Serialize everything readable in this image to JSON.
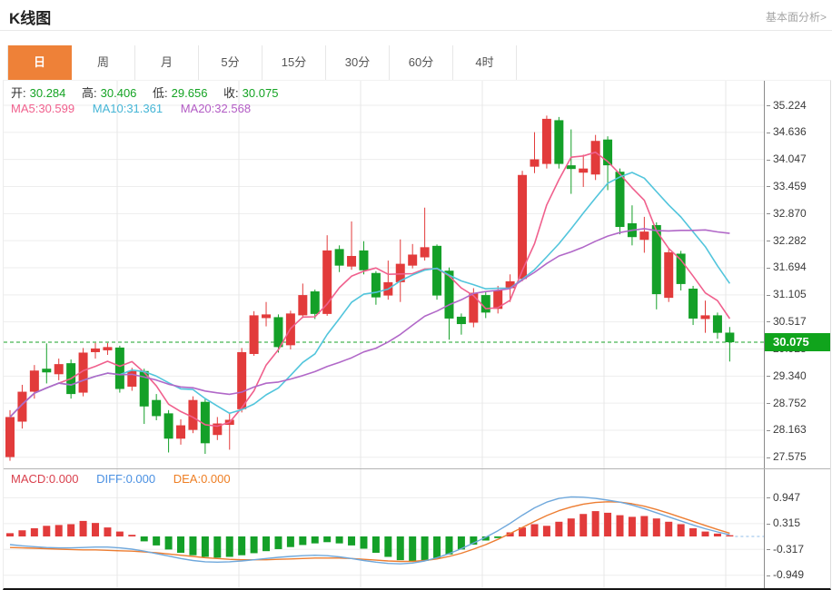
{
  "header": {
    "title": "K线图",
    "link": "基本面分析>"
  },
  "tabs": {
    "items": [
      "日",
      "周",
      "月",
      "5分",
      "15分",
      "30分",
      "60分",
      "4时"
    ],
    "active_index": 0
  },
  "legend": {
    "ohlc": [
      {
        "label": "开:",
        "value": "30.284"
      },
      {
        "label": "高:",
        "value": "30.406"
      },
      {
        "label": "低:",
        "value": "29.656"
      },
      {
        "label": "收:",
        "value": "30.075"
      }
    ],
    "ma": [
      {
        "label": "MA5:",
        "value": "30.599"
      },
      {
        "label": "MA10:",
        "value": "31.361"
      },
      {
        "label": "MA20:",
        "value": "32.568"
      }
    ]
  },
  "macd_legend": [
    {
      "label": "MACD:",
      "value": "0.000"
    },
    {
      "label": "DIFF:",
      "value": "0.000"
    },
    {
      "label": "DEA:",
      "value": "0.000"
    }
  ],
  "price_axis": {
    "labels": [
      "35.224",
      "34.636",
      "34.047",
      "33.459",
      "32.870",
      "32.282",
      "31.694",
      "31.105",
      "30.517",
      "29.928",
      "29.340",
      "28.752",
      "28.163",
      "27.575"
    ],
    "values": [
      35.224,
      34.636,
      34.047,
      33.459,
      32.87,
      32.282,
      31.694,
      31.105,
      30.517,
      29.928,
      29.34,
      28.752,
      28.163,
      27.575
    ],
    "badge": "30.075"
  },
  "macd_axis": {
    "labels": [
      "0.947",
      "0.315",
      "-0.317",
      "-0.949"
    ],
    "values": [
      0.947,
      0.315,
      -0.317,
      -0.949
    ]
  },
  "colors": {
    "up": "#e23b3b",
    "down": "#14a028",
    "ma5": "#f0608d",
    "ma10": "#52c5dc",
    "ma20": "#b168c8",
    "diff_line": "#6fa8dc",
    "dea_line": "#ed7d31",
    "current_price_line": "#1aa327",
    "badge_bg": "#10a41c",
    "tab_active": "#ee8138",
    "grid": "#ededed"
  },
  "chart_data": {
    "type": "candlestick+macd",
    "period": "日",
    "main": {
      "ohlc_display": {
        "open": 30.284,
        "high": 30.406,
        "low": 29.656,
        "close": 30.075
      },
      "ma_display": {
        "ma5": 30.599,
        "ma10": 31.361,
        "ma20": 32.568
      },
      "current_price": 30.075,
      "ylim": [
        27.334,
        35.757
      ],
      "axis_ticks": [
        35.224,
        34.636,
        34.047,
        33.459,
        32.87,
        32.282,
        31.694,
        31.105,
        30.517,
        29.928,
        29.34,
        28.752,
        28.163,
        27.575
      ],
      "candle_format": "[open, close, high, low]",
      "candles": [
        [
          27.58,
          28.45,
          28.6,
          27.5
        ],
        [
          28.35,
          29.0,
          29.15,
          28.2
        ],
        [
          29.0,
          29.46,
          29.58,
          28.85
        ],
        [
          29.5,
          29.42,
          30.05,
          29.18
        ],
        [
          29.38,
          29.6,
          29.72,
          29.25
        ],
        [
          29.62,
          28.95,
          29.7,
          28.85
        ],
        [
          28.98,
          29.85,
          29.95,
          28.9
        ],
        [
          29.86,
          29.94,
          30.06,
          29.72
        ],
        [
          29.9,
          29.97,
          30.06,
          29.8
        ],
        [
          29.96,
          29.06,
          30.0,
          28.98
        ],
        [
          29.11,
          29.45,
          29.52,
          29.02
        ],
        [
          29.45,
          28.68,
          29.5,
          28.3
        ],
        [
          28.82,
          28.47,
          28.95,
          28.38
        ],
        [
          28.53,
          27.98,
          28.6,
          27.68
        ],
        [
          27.98,
          28.27,
          28.4,
          27.85
        ],
        [
          28.17,
          28.82,
          28.9,
          28.1
        ],
        [
          28.78,
          27.88,
          28.85,
          27.65
        ],
        [
          28.06,
          28.31,
          28.45,
          27.95
        ],
        [
          28.28,
          28.39,
          28.52,
          27.74
        ],
        [
          28.62,
          29.86,
          29.95,
          28.55
        ],
        [
          29.82,
          30.66,
          30.75,
          29.78
        ],
        [
          30.6,
          30.68,
          30.95,
          30.42
        ],
        [
          30.62,
          29.97,
          30.68,
          29.85
        ],
        [
          30.01,
          30.7,
          30.76,
          29.92
        ],
        [
          30.66,
          31.1,
          31.35,
          30.6
        ],
        [
          31.18,
          30.69,
          31.22,
          30.58
        ],
        [
          30.69,
          32.07,
          32.4,
          30.65
        ],
        [
          32.1,
          31.74,
          32.18,
          31.6
        ],
        [
          31.72,
          31.95,
          32.7,
          31.65
        ],
        [
          32.07,
          31.64,
          32.27,
          31.55
        ],
        [
          31.58,
          31.05,
          31.62,
          30.89
        ],
        [
          31.09,
          31.38,
          31.85,
          31.0
        ],
        [
          31.38,
          31.78,
          32.31,
          30.95
        ],
        [
          31.74,
          31.98,
          32.21,
          31.68
        ],
        [
          31.92,
          32.14,
          33.0,
          31.85
        ],
        [
          32.17,
          31.09,
          32.2,
          31.0
        ],
        [
          31.63,
          30.59,
          31.7,
          30.13
        ],
        [
          30.63,
          30.47,
          30.7,
          30.24
        ],
        [
          30.5,
          31.15,
          31.25,
          30.4
        ],
        [
          31.1,
          30.72,
          31.18,
          30.6
        ],
        [
          30.8,
          31.2,
          31.3,
          30.7
        ],
        [
          31.25,
          31.4,
          31.55,
          30.95
        ],
        [
          31.45,
          33.71,
          33.8,
          31.4
        ],
        [
          33.89,
          34.05,
          34.64,
          33.75
        ],
        [
          33.95,
          34.93,
          35.0,
          33.85
        ],
        [
          34.9,
          33.95,
          34.97,
          33.85
        ],
        [
          33.92,
          33.84,
          34.7,
          33.3
        ],
        [
          33.76,
          33.85,
          34.15,
          33.45
        ],
        [
          33.72,
          34.45,
          34.58,
          33.6
        ],
        [
          34.48,
          33.92,
          34.55,
          33.38
        ],
        [
          33.78,
          32.58,
          33.85,
          32.42
        ],
        [
          32.66,
          32.36,
          33.05,
          32.18
        ],
        [
          32.3,
          32.48,
          32.8,
          32.02
        ],
        [
          32.62,
          31.12,
          32.68,
          30.79
        ],
        [
          31.04,
          32.03,
          32.1,
          30.95
        ],
        [
          32.0,
          31.34,
          32.06,
          31.2
        ],
        [
          31.24,
          30.59,
          31.3,
          30.45
        ],
        [
          30.58,
          30.66,
          30.98,
          30.28
        ],
        [
          30.66,
          30.28,
          30.72,
          30.15
        ],
        [
          30.284,
          30.075,
          30.406,
          29.656
        ]
      ],
      "ma_periods": [
        5,
        10,
        20
      ]
    },
    "macd": {
      "ylim": [
        -1.276,
        1.658
      ],
      "axis_ticks": [
        0.947,
        0.315,
        -0.317,
        -0.949
      ],
      "hist": [
        0.08,
        0.15,
        0.2,
        0.26,
        0.28,
        0.3,
        0.38,
        0.33,
        0.22,
        0.12,
        0.04,
        -0.12,
        -0.22,
        -0.32,
        -0.4,
        -0.46,
        -0.5,
        -0.52,
        -0.5,
        -0.46,
        -0.41,
        -0.36,
        -0.31,
        -0.26,
        -0.21,
        -0.17,
        -0.14,
        -0.17,
        -0.22,
        -0.3,
        -0.4,
        -0.5,
        -0.58,
        -0.62,
        -0.6,
        -0.54,
        -0.44,
        -0.32,
        -0.2,
        -0.1,
        -0.04,
        0.1,
        0.22,
        0.3,
        0.26,
        0.36,
        0.44,
        0.55,
        0.62,
        0.58,
        0.52,
        0.48,
        0.5,
        0.44,
        0.36,
        0.3,
        0.2,
        0.12,
        0.07,
        0.03
      ],
      "diff": [
        -0.2,
        -0.23,
        -0.25,
        -0.27,
        -0.28,
        -0.28,
        -0.27,
        -0.26,
        -0.26,
        -0.28,
        -0.31,
        -0.36,
        -0.42,
        -0.48,
        -0.54,
        -0.59,
        -0.62,
        -0.63,
        -0.62,
        -0.6,
        -0.57,
        -0.54,
        -0.51,
        -0.49,
        -0.47,
        -0.46,
        -0.47,
        -0.5,
        -0.54,
        -0.59,
        -0.63,
        -0.66,
        -0.67,
        -0.65,
        -0.6,
        -0.52,
        -0.42,
        -0.3,
        -0.16,
        -0.02,
        0.14,
        0.32,
        0.52,
        0.7,
        0.84,
        0.93,
        0.97,
        0.96,
        0.93,
        0.89,
        0.84,
        0.77,
        0.68,
        0.58,
        0.48,
        0.38,
        0.28,
        0.19,
        0.11,
        0.04
      ],
      "dea": [
        -0.27,
        -0.28,
        -0.29,
        -0.3,
        -0.31,
        -0.32,
        -0.33,
        -0.33,
        -0.34,
        -0.35,
        -0.36,
        -0.38,
        -0.4,
        -0.43,
        -0.46,
        -0.49,
        -0.52,
        -0.54,
        -0.56,
        -0.57,
        -0.57,
        -0.57,
        -0.56,
        -0.55,
        -0.54,
        -0.53,
        -0.53,
        -0.53,
        -0.54,
        -0.56,
        -0.58,
        -0.6,
        -0.61,
        -0.61,
        -0.59,
        -0.55,
        -0.49,
        -0.41,
        -0.31,
        -0.2,
        -0.07,
        0.07,
        0.22,
        0.37,
        0.51,
        0.63,
        0.72,
        0.79,
        0.83,
        0.85,
        0.84,
        0.8,
        0.74,
        0.66,
        0.57,
        0.47,
        0.37,
        0.27,
        0.17,
        0.08
      ]
    }
  }
}
